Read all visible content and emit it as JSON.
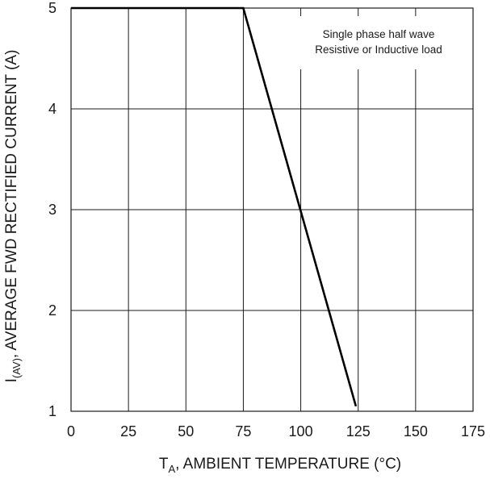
{
  "chart_data": {
    "type": "line",
    "xlabel_main": "T",
    "xlabel_sub": "A",
    "xlabel_rest": ", AMBIENT TEMPERATURE (°C)",
    "ylabel_main": "I",
    "ylabel_sub": "(AV)",
    "ylabel_rest": ", AVERAGE FWD RECTIFIED CURRENT (A)",
    "xlim": [
      0,
      175
    ],
    "ylim": [
      1,
      5
    ],
    "x_ticks": [
      0,
      25,
      50,
      75,
      100,
      125,
      150,
      175
    ],
    "y_ticks": [
      1,
      2,
      3,
      4,
      5
    ],
    "grid": true,
    "annotations": [
      "Single phase half wave",
      "Resistive or Inductive load"
    ],
    "series": [
      {
        "x": [
          0,
          75,
          124
        ],
        "y": [
          5,
          5,
          1.05
        ]
      }
    ]
  }
}
